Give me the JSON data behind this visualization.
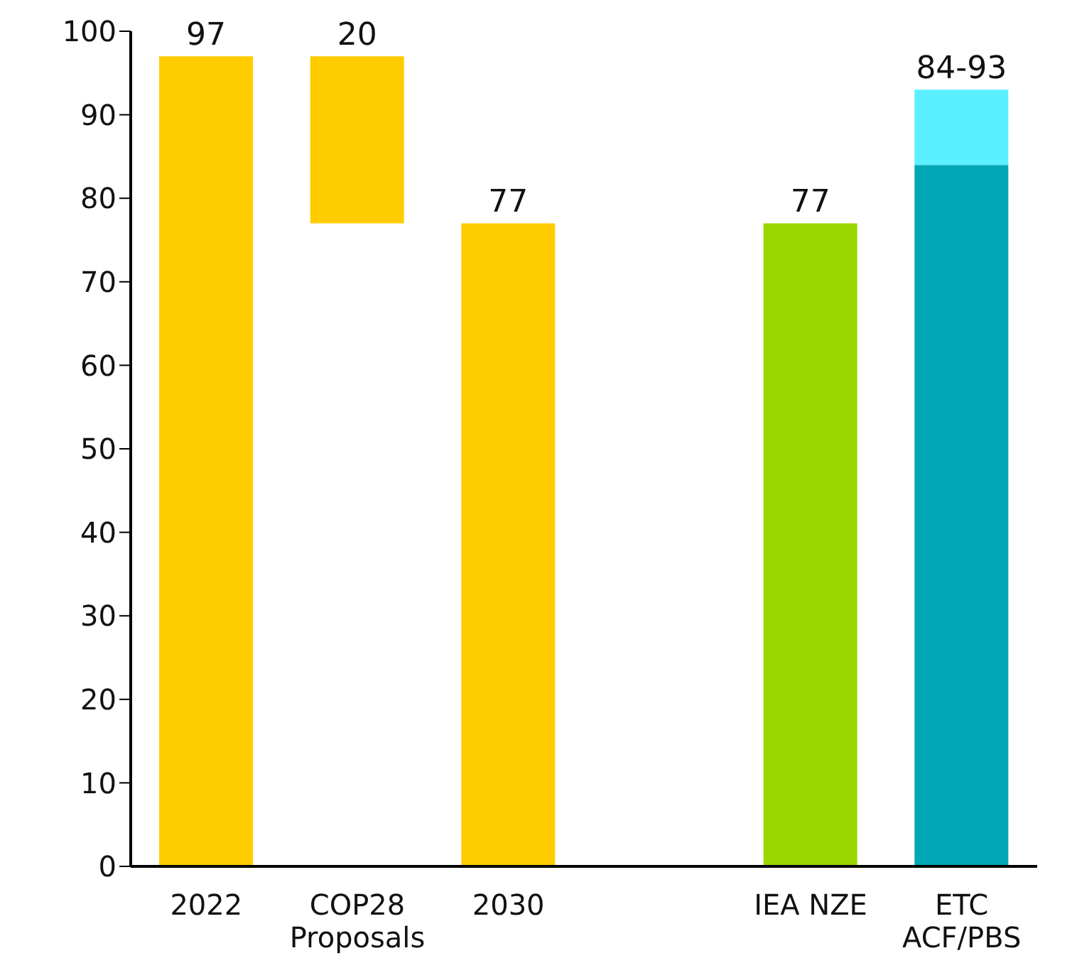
{
  "chart_data": {
    "type": "bar",
    "categories": [
      "2022",
      "COP28 Proposals",
      "2030",
      null,
      "IEA NZE",
      "ETC ACF/PBS"
    ],
    "series": [
      {
        "values": [
          97,
          20,
          77,
          null,
          77,
          84
        ],
        "base": [
          0,
          77,
          0,
          null,
          0,
          0
        ],
        "colors": [
          "#ffcc00",
          "#ffcc00",
          "#ffcc00",
          null,
          "#99d600",
          "#00a8b5"
        ],
        "value_labels": [
          "97",
          "20",
          "77",
          null,
          "77",
          null
        ]
      },
      {
        "values": [
          null,
          null,
          null,
          null,
          null,
          9
        ],
        "base": [
          null,
          null,
          null,
          null,
          null,
          84
        ],
        "colors": [
          null,
          null,
          null,
          null,
          null,
          "#5af0ff"
        ],
        "value_labels": [
          null,
          null,
          null,
          null,
          null,
          "84-93"
        ]
      }
    ],
    "ylim": [
      0,
      100
    ],
    "yticks": [
      0,
      10,
      20,
      30,
      40,
      50,
      60,
      70,
      80,
      90,
      100
    ],
    "grid": false
  }
}
